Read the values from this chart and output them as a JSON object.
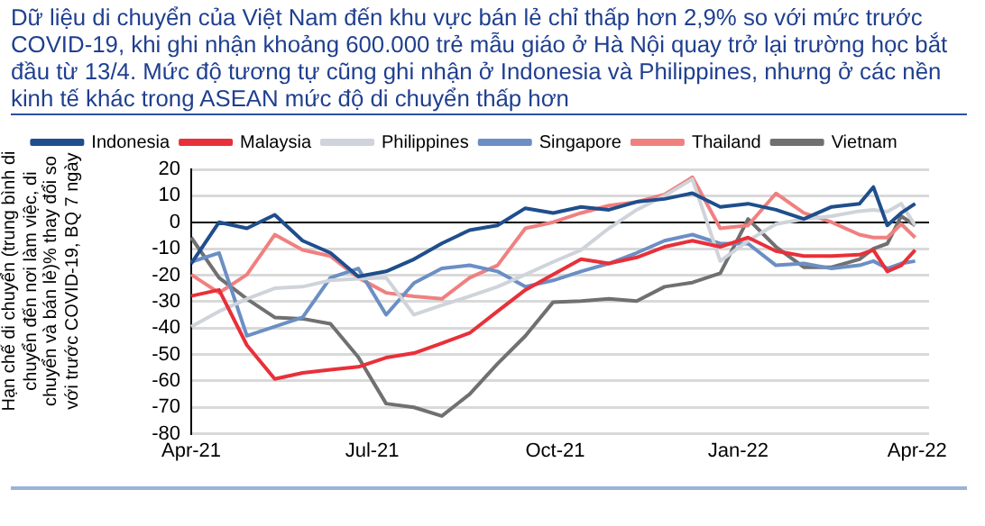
{
  "chart_data": {
    "type": "line",
    "title": "Dữ liệu di chuyển của Việt Nam đến khu vực bán lẻ chỉ thấp hơn 2,9% so với mức trước COVID-19, khi ghi nhận khoảng 600.000 trẻ mẫu giáo ở Hà Nội quay trở lại trường học bắt đầu từ 13/4. Mức độ tương tự cũng ghi nhận ở Indonesia và Philippines, nhưng ở các nền kinh tế khác trong ASEAN mức độ di chuyển thấp hơn",
    "ylabel": "Hạn chế di chuyển (trung bình di chuyển đến nơi làm việc, di chuyển và bán lẻ)% thay đổi so với trước COVID-19, BQ 7 ngày",
    "x": [
      "2021-04-01",
      "2021-04-15",
      "2021-04-29",
      "2021-05-13",
      "2021-05-27",
      "2021-06-10",
      "2021-06-24",
      "2021-07-08",
      "2021-07-22",
      "2021-08-05",
      "2021-08-19",
      "2021-09-02",
      "2021-09-16",
      "2021-09-30",
      "2021-10-14",
      "2021-10-28",
      "2021-11-11",
      "2021-11-25",
      "2021-12-09",
      "2021-12-23",
      "2022-01-06",
      "2022-01-20",
      "2022-02-03",
      "2022-02-17",
      "2022-03-03",
      "2022-03-10",
      "2022-03-17",
      "2022-03-24",
      "2022-03-31"
    ],
    "series": [
      {
        "name": "Indonesia",
        "color": "#1f4e8c",
        "values": [
          -15.6,
          0,
          -2.3,
          2.8,
          -7,
          -11.6,
          -20.5,
          -18.6,
          -14,
          -8,
          -3,
          -1.2,
          5.3,
          3.5,
          5.8,
          4.7,
          7.7,
          8.8,
          11,
          5.8,
          7,
          4.7,
          1.2,
          5.8,
          7,
          13.3,
          -1.2,
          3.5,
          7
        ]
      },
      {
        "name": "Malaysia",
        "color": "#e8303a",
        "values": [
          -27.9,
          -25.6,
          -46.5,
          -59.3,
          -57,
          -55.8,
          -54.7,
          -51.2,
          -49.5,
          -45.8,
          -41.9,
          -33.7,
          -25.6,
          -19.8,
          -14,
          -15.6,
          -13.3,
          -9.3,
          -7,
          -9.3,
          -5.8,
          -10.9,
          -12.8,
          -12.8,
          -12.3,
          -10.5,
          -18.6,
          -16.3,
          -10.5
        ]
      },
      {
        "name": "Philippines",
        "color": "#cfd3da",
        "values": [
          -39.5,
          -33.7,
          -29,
          -25,
          -24.4,
          -22,
          -21.4,
          -21,
          -35,
          -31.4,
          -28,
          -24.4,
          -19.8,
          -15,
          -10.5,
          -2.3,
          4.7,
          10,
          16.3,
          -14.7,
          -7,
          -0.7,
          1.2,
          2.3,
          4.2,
          4.7,
          4,
          7,
          -1.2
        ]
      },
      {
        "name": "Singapore",
        "color": "#6b8fc4",
        "values": [
          -15,
          -11.6,
          -43,
          -39.5,
          -36,
          -21,
          -17.5,
          -35,
          -23,
          -17.5,
          -16.3,
          -18.6,
          -24.4,
          -22,
          -18.6,
          -15.6,
          -11.6,
          -7,
          -4.7,
          -8.1,
          -8.1,
          -16.3,
          -15.6,
          -17.5,
          -16.3,
          -14.7,
          -17.5,
          -15.6,
          -14.7
        ]
      },
      {
        "name": "Thailand",
        "color": "#f08080",
        "values": [
          -19.8,
          -26.7,
          -19.8,
          -4.7,
          -10.5,
          -12.8,
          -21,
          -26.7,
          -28,
          -29,
          -21,
          -16.3,
          -2.3,
          0,
          3.5,
          6.3,
          7.7,
          10.5,
          17,
          -2.3,
          -1.2,
          10.9,
          3.5,
          0,
          -4.7,
          -5.8,
          -5.8,
          -0.7,
          -5.8
        ]
      },
      {
        "name": "Vietnam",
        "color": "#707070",
        "values": [
          -5.8,
          -21,
          -29,
          -36,
          -36.5,
          -38.4,
          -51,
          -68.6,
          -70,
          -73.3,
          -65,
          -53.5,
          -43,
          -30.2,
          -29.8,
          -29,
          -29.8,
          -24.4,
          -22.8,
          -19.3,
          1.2,
          -9.3,
          -17,
          -17,
          -14,
          -10,
          -8.1,
          2.3,
          -1.2
        ]
      }
    ],
    "xlim": [
      "2021-04-01",
      "2022-04-07"
    ],
    "xticks": [
      {
        "value": "2021-04-01",
        "label": "Apr-21"
      },
      {
        "value": "2021-07-01",
        "label": "Jul-21"
      },
      {
        "value": "2021-10-01",
        "label": "Oct-21"
      },
      {
        "value": "2022-01-01",
        "label": "Jan-22"
      },
      {
        "value": "2022-04-01",
        "label": "Apr-22"
      }
    ],
    "ylim": [
      -80,
      20
    ],
    "yticks": [
      -80,
      -70,
      -60,
      -50,
      -40,
      -30,
      -20,
      -10,
      0,
      10,
      20
    ],
    "grid": "y",
    "legend": "top"
  }
}
